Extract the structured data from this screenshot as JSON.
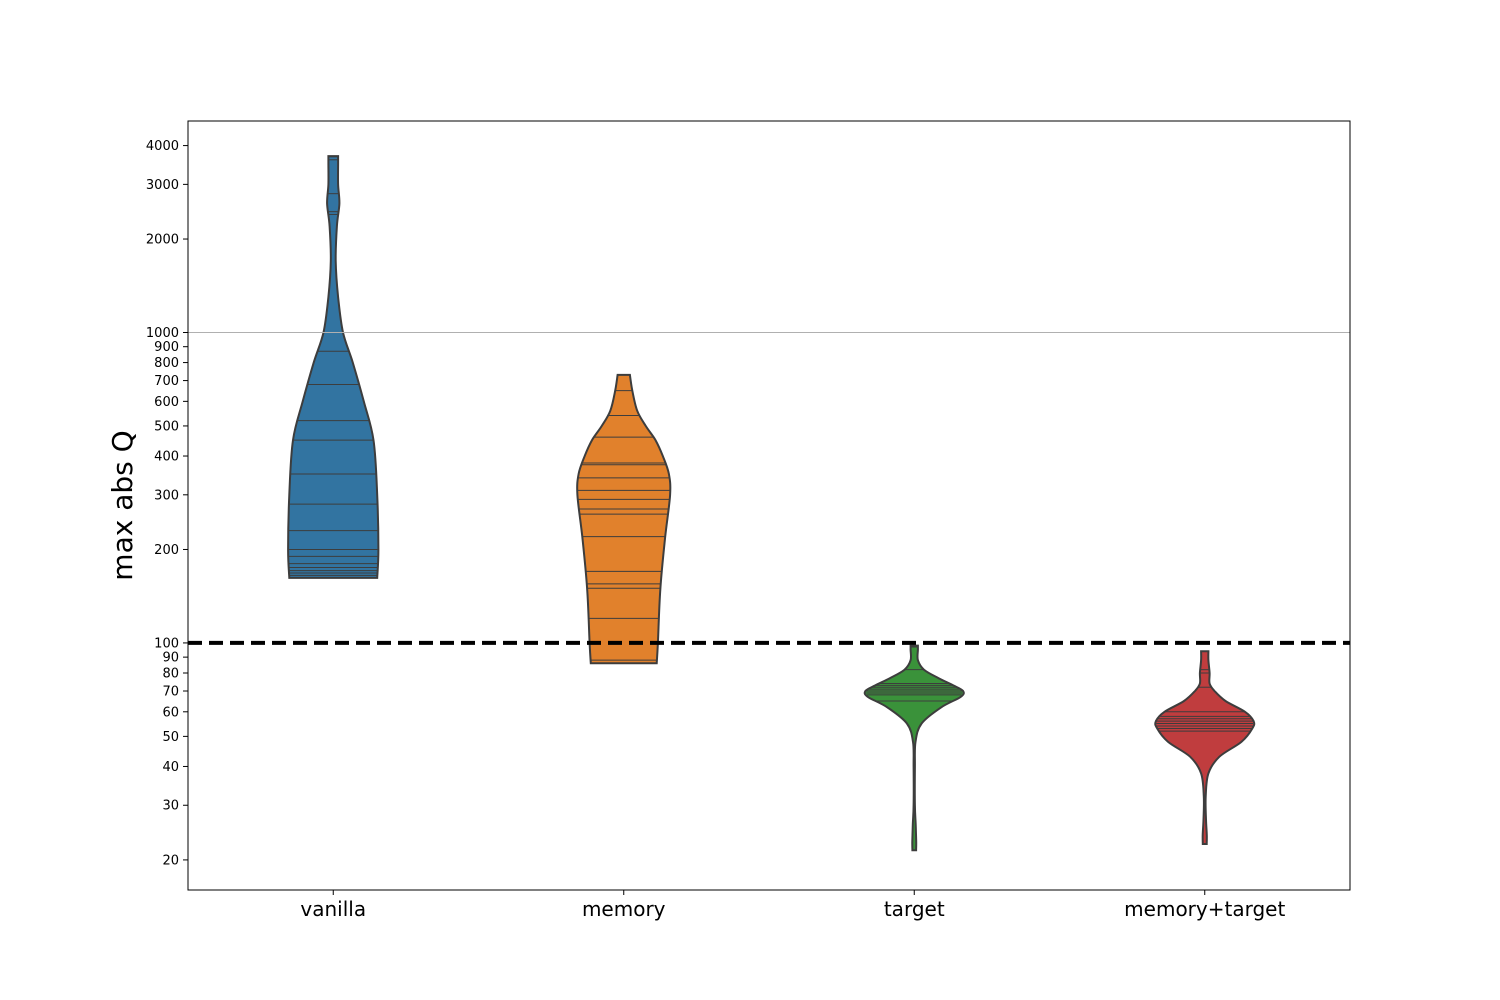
{
  "chart_data": {
    "type": "violin",
    "title": "",
    "xlabel": "",
    "ylabel": "max abs Q",
    "yscale": "log",
    "ylim": [
      16,
      4800
    ],
    "yticks": [
      20,
      30,
      40,
      50,
      60,
      70,
      80,
      90,
      100,
      200,
      300,
      400,
      500,
      600,
      700,
      800,
      900,
      1000,
      2000,
      3000,
      4000
    ],
    "ytick_labels": [
      "20",
      "30",
      "40",
      "50",
      "60",
      "70",
      "80",
      "90",
      "100",
      "200",
      "300",
      "400",
      "500",
      "600",
      "700",
      "800",
      "900",
      "1000",
      "2000",
      "3000",
      "4000"
    ],
    "hline_grey": 1000,
    "hline_dashed": 100,
    "grid": false,
    "inner": "stick",
    "categories": [
      "vanilla",
      "memory",
      "target",
      "memory+target"
    ],
    "series": [
      {
        "color": "#3274a1",
        "profile": [
          [
            162,
            0.36
          ],
          [
            200,
            0.37
          ],
          [
            300,
            0.36
          ],
          [
            450,
            0.33
          ],
          [
            600,
            0.25
          ],
          [
            800,
            0.16
          ],
          [
            1000,
            0.08
          ],
          [
            1300,
            0.04
          ],
          [
            1700,
            0.02
          ],
          [
            2200,
            0.03
          ],
          [
            2600,
            0.05
          ],
          [
            3000,
            0.04
          ],
          [
            3500,
            0.04
          ],
          [
            3700,
            0.04
          ]
        ],
        "values": [
          162,
          165,
          168,
          171,
          175,
          180,
          190,
          200,
          230,
          280,
          350,
          450,
          520,
          680,
          870,
          2400,
          2450,
          2800,
          3600,
          3680
        ]
      },
      {
        "color": "#e1812c",
        "profile": [
          [
            86,
            0.27
          ],
          [
            100,
            0.28
          ],
          [
            150,
            0.3
          ],
          [
            220,
            0.34
          ],
          [
            300,
            0.38
          ],
          [
            350,
            0.37
          ],
          [
            400,
            0.32
          ],
          [
            450,
            0.26
          ],
          [
            500,
            0.18
          ],
          [
            560,
            0.11
          ],
          [
            650,
            0.07
          ],
          [
            730,
            0.05
          ]
        ],
        "values": [
          88,
          120,
          150,
          155,
          170,
          220,
          260,
          270,
          290,
          310,
          340,
          375,
          380,
          460,
          540,
          650
        ]
      },
      {
        "color": "#3a923a",
        "profile": [
          [
            21.5,
            0.015
          ],
          [
            23,
            0.016
          ],
          [
            26,
            0.012
          ],
          [
            30,
            0.005
          ],
          [
            40,
            0.005
          ],
          [
            48,
            0.01
          ],
          [
            55,
            0.06
          ],
          [
            62,
            0.22
          ],
          [
            67,
            0.38
          ],
          [
            70,
            0.4
          ],
          [
            73,
            0.32
          ],
          [
            77,
            0.2
          ],
          [
            82,
            0.08
          ],
          [
            88,
            0.03
          ],
          [
            95,
            0.03
          ],
          [
            98,
            0.03
          ]
        ],
        "values": [
          65,
          68,
          69,
          70,
          71,
          72,
          73,
          74,
          82,
          97
        ]
      },
      {
        "color": "#c03d3e",
        "profile": [
          [
            22.5,
            0.016
          ],
          [
            24,
            0.017
          ],
          [
            27,
            0.01
          ],
          [
            32,
            0.008
          ],
          [
            38,
            0.03
          ],
          [
            43,
            0.12
          ],
          [
            48,
            0.3
          ],
          [
            53,
            0.39
          ],
          [
            56,
            0.4
          ],
          [
            60,
            0.33
          ],
          [
            65,
            0.17
          ],
          [
            70,
            0.08
          ],
          [
            74,
            0.04
          ],
          [
            80,
            0.04
          ],
          [
            88,
            0.03
          ],
          [
            94,
            0.03
          ]
        ],
        "values": [
          52,
          53,
          54,
          55,
          56,
          57,
          58,
          60,
          72,
          80,
          82
        ]
      }
    ]
  }
}
